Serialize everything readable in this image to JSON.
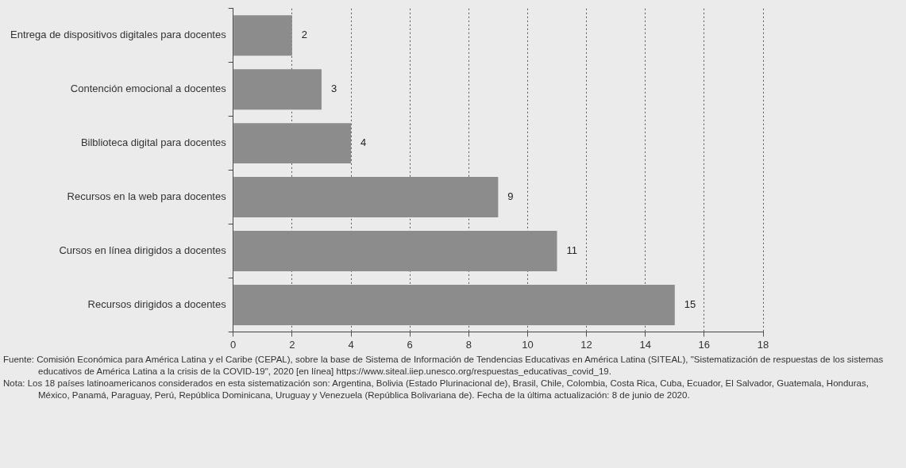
{
  "chart_data": {
    "type": "bar",
    "orientation": "horizontal",
    "categories": [
      "Entrega de dispositivos digitales para docentes",
      "Contención emocional a docentes",
      "Bilblioteca digital para docentes",
      "Recursos en la web para docentes",
      "Cursos en línea dirigidos a docentes",
      "Recursos dirigidos a docentes"
    ],
    "values": [
      2,
      3,
      4,
      9,
      11,
      15
    ],
    "data_labels": true,
    "color": "#8c8c8c",
    "xlim": [
      0,
      18
    ],
    "xticks": [
      0,
      2,
      4,
      6,
      8,
      10,
      12,
      14,
      16,
      18
    ],
    "grid": "x",
    "legend": false,
    "annotations": [
      "Fuente: Comisión Económica para América Latina y el Caribe (CEPAL), sobre la base de Sistema de Información de Tendencias Educativas en América Latina (SITEAL), \"Sistematización de respuestas de los sistemas educativos de América Latina a la crisis de la COVID-19\", 2020 [en línea] https://www.siteal.iiep.unesco.org/respuestas_educativas_covid_19.",
      "Nota: Los 18 países latinoamericanos considerados en esta sistematización son: Argentina, Bolivia (Estado Plurinacional de), Brasil, Chile, Colombia, Costa Rica, Cuba, Ecuador, El Salvador, Guatemala, Honduras, México, Panamá, Paraguay, Perú, República Dominicana, Uruguay y Venezuela (República Bolivariana de). Fecha de la última actualización: 8 de junio de 2020."
    ]
  }
}
